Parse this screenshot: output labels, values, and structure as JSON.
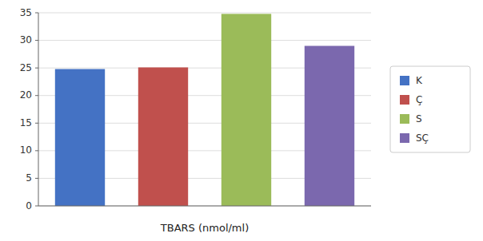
{
  "chart_data": {
    "type": "bar",
    "x_label": "TBARS (nmol/ml)",
    "categories": [
      "K",
      "Ç",
      "S",
      "SÇ"
    ],
    "values": [
      24.8,
      25.1,
      34.8,
      29.0
    ],
    "colors": [
      "#4472C4",
      "#C0504D",
      "#9BBB59",
      "#7B68AE"
    ],
    "ylim": [
      0,
      35
    ],
    "yticks": [
      0,
      5,
      10,
      15,
      20,
      25,
      30,
      35
    ],
    "grid": true,
    "legend": "right",
    "tick_labels": "y"
  }
}
